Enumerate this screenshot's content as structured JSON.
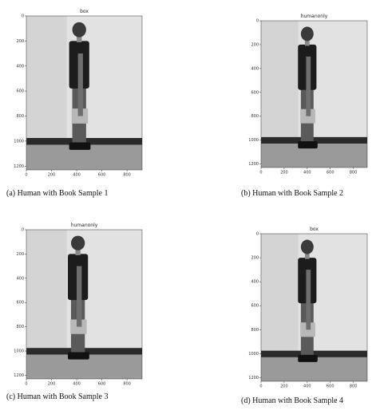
{
  "panels": [
    {
      "title": "box",
      "caption": "(a) Human with Book Sample 1",
      "xticks": [
        0,
        200,
        400,
        600,
        800
      ],
      "yticks": [
        0,
        200,
        400,
        600,
        800,
        1000,
        1200
      ]
    },
    {
      "title": "humanonly",
      "caption": "(b) Human with Book Sample 2",
      "xticks": [
        0,
        200,
        400,
        600,
        800
      ],
      "yticks": [
        0,
        200,
        400,
        600,
        800,
        1000,
        1200
      ]
    },
    {
      "title": "humanonly",
      "caption": "(c) Human with Book Sample 3",
      "xticks": [
        0,
        200,
        400,
        600,
        800
      ],
      "yticks": [
        0,
        200,
        400,
        600,
        800,
        1000,
        1200
      ]
    },
    {
      "title": "box",
      "caption": "(d) Human with Book Sample 4",
      "xticks": [
        0,
        200,
        400,
        600,
        800
      ],
      "yticks": [
        0,
        200,
        400,
        600,
        800,
        1000,
        1200
      ]
    }
  ]
}
